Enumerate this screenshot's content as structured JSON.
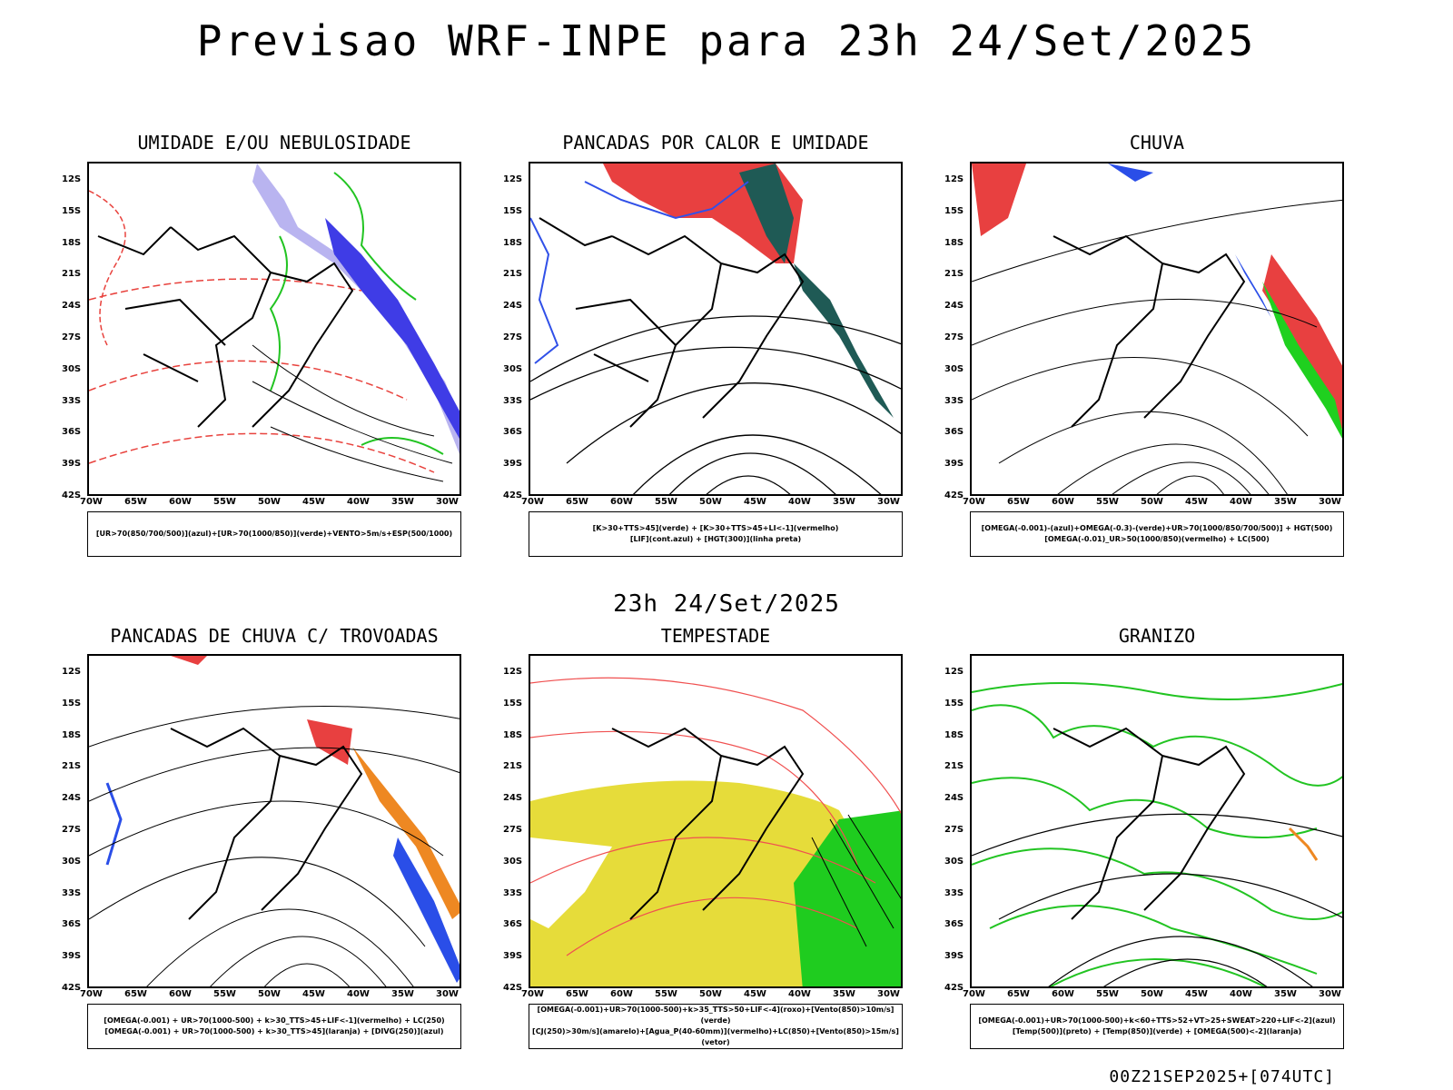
{
  "title": "Previsao WRF-INPE  para 23h 24/Set/2025",
  "mid_label": "23h 24/Set/2025",
  "footer": "00Z21SEP2025+[074UTC]",
  "lat_ticks": [
    "12S",
    "15S",
    "18S",
    "21S",
    "24S",
    "27S",
    "30S",
    "33S",
    "36S",
    "39S",
    "42S"
  ],
  "lon_ticks": [
    "70W",
    "65W",
    "60W",
    "55W",
    "50W",
    "45W",
    "40W",
    "35W",
    "30W"
  ],
  "panels": [
    {
      "title": "UMIDADE E/OU NEBULOSIDADE",
      "legend": [
        "[UR>70(850/700/500)](azul)+[UR>70(1000/850)](verde)+VENTO>5m/s+ESP(500/1000)"
      ],
      "colors": [
        "#b9b4f0",
        "#3f3ce6",
        "#22c422",
        "#e8423d"
      ]
    },
    {
      "title": "PANCADAS POR CALOR E UMIDADE",
      "legend": [
        "[K>30+TTS>45](verde) + [K>30+TTS>45+LI<-1](vermelho)",
        "[LIF](cont.azul) + [HGT(300)](linha preta)"
      ],
      "colors": [
        "#e84040",
        "#1f5a55",
        "#3050e8"
      ]
    },
    {
      "title": "CHUVA",
      "legend": [
        "[OMEGA(-0.001)-(azul)+OMEGA(-0.3)-(verde)+UR>70(1000/850/700/500)] + HGT(500)",
        "[OMEGA(-0.01)_UR>50(1000/850)(vermelho) + LC(500)"
      ],
      "colors": [
        "#e84040",
        "#2a4ee8",
        "#1fd01f"
      ]
    },
    {
      "title": "PANCADAS DE CHUVA C/ TROVOADAS",
      "legend": [
        "[OMEGA(-0.001) + UR>70(1000-500) + k>30_TTS>45+LIF<-1](vermelho) + LC(250)",
        "[OMEGA(-0.001) + UR>70(1000-500) + k>30_TTS>45](laranja) + [DIVG(250)](azul)"
      ],
      "colors": [
        "#e84040",
        "#2a4ee8",
        "#ee8822"
      ]
    },
    {
      "title": "TEMPESTADE",
      "legend": [
        "[OMEGA(-0.001)+UR>70(1000-500)+k>35_TTS>50+LIF<-4](roxo)+[Vento(850)>10m/s](verde)",
        "[CJ(250)>30m/s](amarelo)+[Agua_P(40-60mm)](vermelho)+LC(850)+[Vento(850)>15m/s](vetor)"
      ],
      "colors": [
        "#e6dc3a",
        "#1fcc1f",
        "#f05050"
      ]
    },
    {
      "title": "GRANIZO",
      "legend": [
        "[OMEGA(-0.001)+UR>70(1000-500)+k<60+TTS>52+VT>25+SWEAT>220+LIF<-2](azul)",
        "[Temp(500)](preto) + [Temp(850)](verde) + [OMEGA(500)<-2](laranja)"
      ],
      "colors": [
        "#22c422",
        "#ee8822"
      ]
    }
  ]
}
